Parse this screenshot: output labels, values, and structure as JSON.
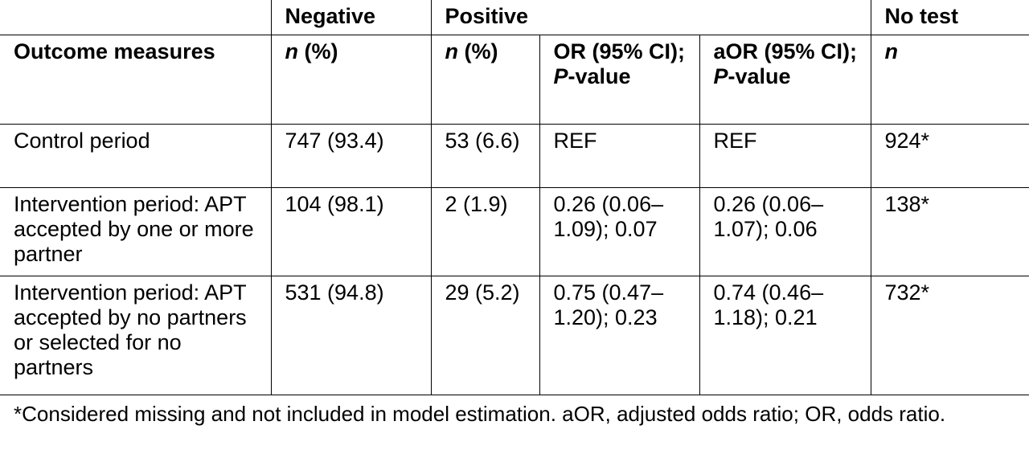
{
  "header_row1": {
    "blank": "",
    "negative": "Negative",
    "positive": "Positive",
    "no_test": "No test"
  },
  "header_row2": {
    "outcome": "Outcome measures",
    "neg_n_italic": "n",
    "neg_n_rest": " (%)",
    "pos_n_italic": "n",
    "pos_n_rest": " (%)",
    "or_pre": "OR (95% CI); ",
    "or_italic": "P",
    "or_post": "-value",
    "aor_pre": "aOR (95% CI); ",
    "aor_italic": "P",
    "aor_post": "-value",
    "notest_n_italic": "n"
  },
  "rows": [
    {
      "outcome": "Control period",
      "negative": "747 (93.4)",
      "positive_n": "53 (6.6)",
      "or": "REF",
      "aor": "REF",
      "no_test": "924*"
    },
    {
      "outcome": "Intervention period: APT accepted by one or more partner",
      "negative": "104 (98.1)",
      "positive_n": "2 (1.9)",
      "or": "0.26 (0.06–1.09); 0.07",
      "aor": "0.26 (0.06–1.07); 0.06",
      "no_test": "138*"
    },
    {
      "outcome": "Intervention period: APT accepted by no partners or selected for no partners",
      "negative": "531 (94.8)",
      "positive_n": "29 (5.2)",
      "or": "0.75 (0.47–1.20); 0.23",
      "aor": "0.74 (0.46–1.18); 0.21",
      "no_test": "732*"
    }
  ],
  "footnote": "*Considered missing and not included in model estimation. aOR, adjusted odds ratio; OR, odds ratio."
}
